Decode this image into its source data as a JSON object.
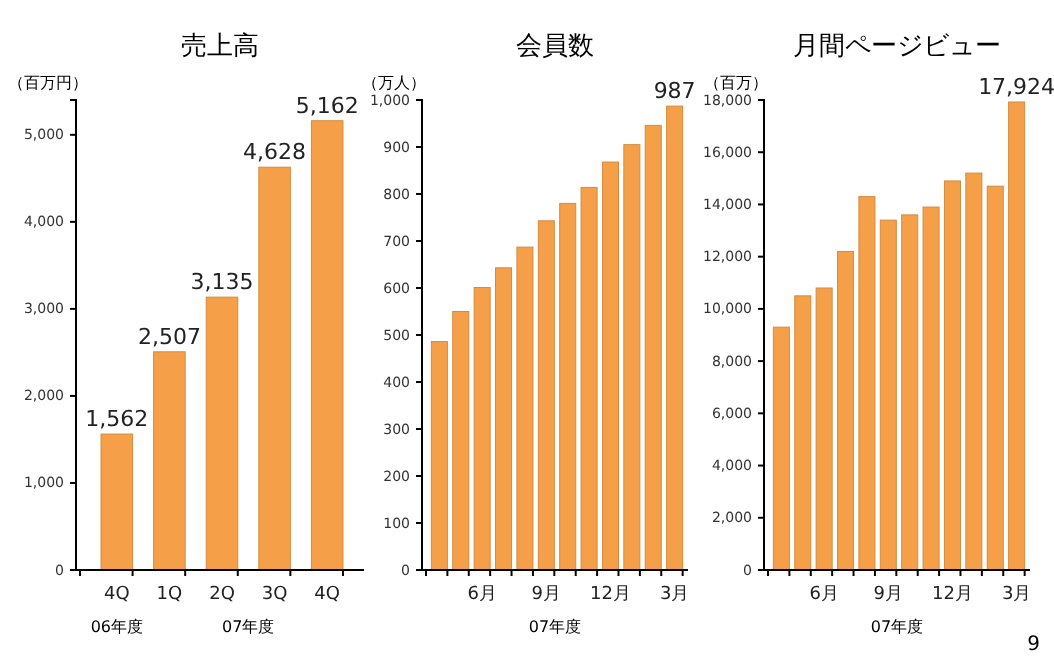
{
  "chart_data": [
    {
      "type": "bar",
      "title": "売上高",
      "ylabel": "（百万円）",
      "categories": [
        "4Q",
        "1Q",
        "2Q",
        "3Q",
        "4Q"
      ],
      "values": [
        1562,
        2507,
        3135,
        4628,
        5162
      ],
      "value_labels": [
        "1,562",
        "2,507",
        "3,135",
        "4,628",
        "5,162"
      ],
      "color": "#f5a048",
      "ylim": [
        0,
        5400
      ],
      "yticks": [
        0,
        {
          "value": 1000,
          "label": "1,000"
        },
        {
          "value": 2000,
          "label": "2,000"
        },
        {
          "value": 3000,
          "label": "3,000"
        },
        {
          "value": 4000,
          "label": "4,000"
        },
        {
          "value": 5000,
          "label": "5,000"
        }
      ],
      "annotations": [
        "06年度",
        "07年度"
      ]
    },
    {
      "type": "bar",
      "title": "会員数",
      "ylabel": "（万人）",
      "xlabel": "07年度",
      "categories": [
        null,
        null,
        "6月",
        null,
        null,
        "9月",
        null,
        null,
        "12月",
        null,
        null,
        "3月"
      ],
      "values": [
        486,
        550,
        601,
        643,
        687,
        743,
        780,
        814,
        868,
        905,
        946,
        987
      ],
      "value_labels": [
        null,
        null,
        null,
        null,
        null,
        null,
        null,
        null,
        null,
        null,
        null,
        "987"
      ],
      "color": "#f5a048",
      "ylim": [
        0,
        1000
      ],
      "yticks": [
        0,
        100,
        200,
        300,
        400,
        500,
        600,
        700,
        800,
        900,
        {
          "value": 1000,
          "label": "1,000"
        }
      ]
    },
    {
      "type": "bar",
      "title": "月間ページビュー",
      "ylabel": "（百万）",
      "xlabel": "07年度",
      "categories": [
        null,
        null,
        "6月",
        null,
        null,
        "9月",
        null,
        null,
        "12月",
        null,
        null,
        "3月"
      ],
      "values": [
        9300,
        10500,
        10800,
        12200,
        14300,
        13400,
        13600,
        13900,
        14900,
        15200,
        14700,
        17924
      ],
      "value_labels": [
        null,
        null,
        null,
        null,
        null,
        null,
        null,
        null,
        null,
        null,
        null,
        "17,924"
      ],
      "color": "#f5a048",
      "ylim": [
        0,
        18000
      ],
      "yticks": [
        0,
        {
          "value": 2000,
          "label": "2,000"
        },
        {
          "value": 4000,
          "label": "4,000"
        },
        {
          "value": 6000,
          "label": "6,000"
        },
        {
          "value": 8000,
          "label": "8,000"
        },
        {
          "value": 10000,
          "label": "10,000"
        },
        {
          "value": 12000,
          "label": "12,000"
        },
        {
          "value": 14000,
          "label": "14,000"
        },
        {
          "value": 16000,
          "label": "16,000"
        },
        {
          "value": 18000,
          "label": "18,000"
        }
      ],
      "annotations": [
        "9"
      ]
    }
  ]
}
